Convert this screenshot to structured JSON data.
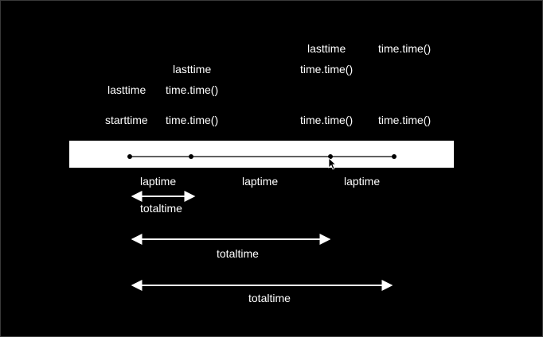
{
  "labels": {
    "l1": "lasttime",
    "l2": "lasttime",
    "l3": "lasttime",
    "start": "starttime",
    "t_a": "time.time()",
    "t_b": "time.time()",
    "t_c": "time.time()",
    "t_d": "time.time()",
    "t_e": "time.time()",
    "t_f": "time.time()"
  },
  "laptimes": [
    "laptime",
    "laptime",
    "laptime"
  ],
  "totaltimes": [
    "totaltime",
    "totaltime",
    "totaltime"
  ],
  "colors": {
    "background": "#000000",
    "track": "#ffffff",
    "ink": "#ffffff"
  }
}
